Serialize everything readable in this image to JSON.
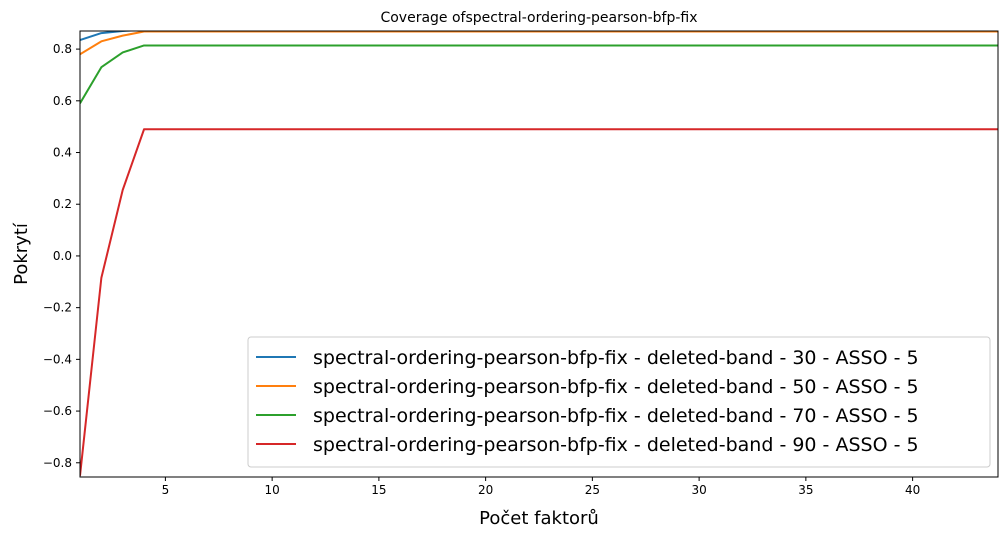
{
  "chart_data": {
    "type": "line",
    "title": "Coverage ofspectral-ordering-pearson-bfp-fix",
    "xlabel": "Počet faktorů",
    "ylabel": "Pokrytí",
    "xlim": [
      1,
      44
    ],
    "ylim": [
      -0.855,
      0.87
    ],
    "xticks": [
      5,
      10,
      15,
      20,
      25,
      30,
      35,
      40
    ],
    "yticks": [
      -0.8,
      -0.6,
      -0.4,
      -0.2,
      0.0,
      0.2,
      0.4,
      0.6,
      0.8
    ],
    "xtick_labels": [
      "5",
      "10",
      "15",
      "20",
      "25",
      "30",
      "35",
      "40"
    ],
    "ytick_labels": [
      "−0.8",
      "−0.6",
      "−0.4",
      "−0.2",
      "0.0",
      "0.2",
      "0.4",
      "0.6",
      "0.8"
    ],
    "grid": false,
    "legend_position": "lower-right",
    "x": [
      1,
      2,
      3,
      4,
      5,
      6,
      7,
      8,
      9,
      10,
      11,
      12,
      13,
      14,
      15,
      16,
      17,
      18,
      19,
      20,
      21,
      22,
      23,
      24,
      25,
      26,
      27,
      28,
      29,
      30,
      31,
      32,
      33,
      34,
      35,
      36,
      37,
      38,
      39,
      40,
      41,
      42,
      43,
      44
    ],
    "series": [
      {
        "name": "spectral-ordering-pearson-bfp-fix - deleted-band - 30 - ASSO - 5",
        "color": "#1f77b4",
        "values": [
          0.835,
          0.862,
          0.87,
          0.875,
          0.875,
          0.875,
          0.875,
          0.875,
          0.875,
          0.875,
          0.875,
          0.875,
          0.875,
          0.875,
          0.875,
          0.875,
          0.875,
          0.875,
          0.875,
          0.875,
          0.875,
          0.875,
          0.875,
          0.875,
          0.875,
          0.875,
          0.875,
          0.875,
          0.875,
          0.875,
          0.875,
          0.875,
          0.875,
          0.875,
          0.875,
          0.875,
          0.875,
          0.875,
          0.875,
          0.875,
          0.875,
          0.875,
          0.875,
          0.875
        ]
      },
      {
        "name": "spectral-ordering-pearson-bfp-fix - deleted-band - 50 - ASSO - 5",
        "color": "#ff7f0e",
        "values": [
          0.78,
          0.83,
          0.852,
          0.868,
          0.868,
          0.868,
          0.868,
          0.868,
          0.868,
          0.868,
          0.868,
          0.868,
          0.868,
          0.868,
          0.868,
          0.868,
          0.868,
          0.868,
          0.868,
          0.868,
          0.868,
          0.868,
          0.868,
          0.868,
          0.868,
          0.868,
          0.868,
          0.868,
          0.868,
          0.868,
          0.868,
          0.868,
          0.868,
          0.868,
          0.868,
          0.868,
          0.868,
          0.868,
          0.868,
          0.868,
          0.868,
          0.868,
          0.868,
          0.868
        ]
      },
      {
        "name": "spectral-ordering-pearson-bfp-fix - deleted-band - 70 - ASSO - 5",
        "color": "#2ca02c",
        "values": [
          0.59,
          0.73,
          0.787,
          0.814,
          0.814,
          0.814,
          0.814,
          0.814,
          0.814,
          0.814,
          0.814,
          0.814,
          0.814,
          0.814,
          0.814,
          0.814,
          0.814,
          0.814,
          0.814,
          0.814,
          0.814,
          0.814,
          0.814,
          0.814,
          0.814,
          0.814,
          0.814,
          0.814,
          0.814,
          0.814,
          0.814,
          0.814,
          0.814,
          0.814,
          0.814,
          0.814,
          0.814,
          0.814,
          0.814,
          0.814,
          0.814,
          0.814,
          0.814,
          0.814
        ]
      },
      {
        "name": "spectral-ordering-pearson-bfp-fix - deleted-band - 90 - ASSO - 5",
        "color": "#d62728",
        "values": [
          -0.85,
          -0.085,
          0.255,
          0.49,
          0.49,
          0.49,
          0.49,
          0.49,
          0.49,
          0.49,
          0.49,
          0.49,
          0.49,
          0.49,
          0.49,
          0.49,
          0.49,
          0.49,
          0.49,
          0.49,
          0.49,
          0.49,
          0.49,
          0.49,
          0.49,
          0.49,
          0.49,
          0.49,
          0.49,
          0.49,
          0.49,
          0.49,
          0.49,
          0.49,
          0.49,
          0.49,
          0.49,
          0.49,
          0.49,
          0.49,
          0.49,
          0.49,
          0.49,
          0.49
        ]
      }
    ]
  }
}
